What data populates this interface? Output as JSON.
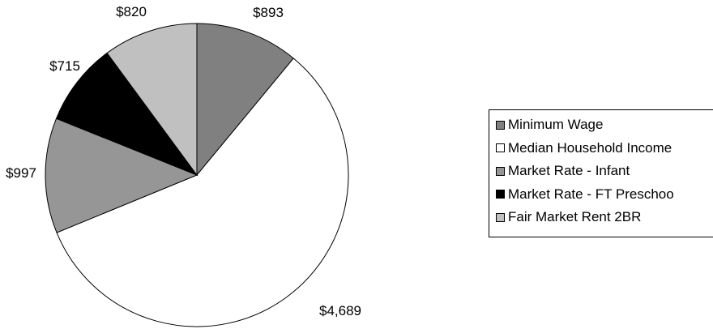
{
  "chart_data": {
    "type": "pie",
    "title": "",
    "start_angle_deg": 0,
    "direction": "clockwise",
    "categories": [
      "Minimum Wage",
      "Median Household Income",
      "Market Rate - Infant",
      "Market Rate - FT Preschoo",
      "Fair Market Rent 2BR"
    ],
    "values": [
      893,
      4689,
      997,
      715,
      820
    ],
    "labels": [
      "$893",
      "$4,689",
      "$997",
      "$715",
      "$820"
    ],
    "colors": [
      "#808080",
      "#ffffff",
      "#969696",
      "#000000",
      "#c0c0c0"
    ],
    "legend_position": "right"
  }
}
